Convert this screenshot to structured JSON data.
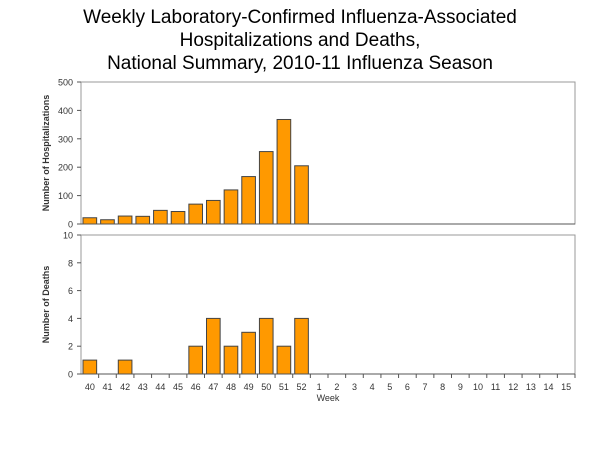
{
  "chart_data": [
    {
      "type": "bar",
      "title": "Weekly Laboratory-Confirmed Influenza-Associated Hospitalizations and Deaths, National Summary, 2010-11 Influenza Season",
      "title_lines": [
        "Weekly Laboratory-Confirmed Influenza-Associated",
        "Hospitalizations and Deaths,",
        "National Summary, 2010-11 Influenza Season"
      ],
      "ylabel": "Number of Hospitalizations",
      "ylim": [
        0,
        500
      ],
      "yticks": [
        0,
        100,
        200,
        300,
        400,
        500
      ],
      "categories": [
        "40",
        "41",
        "42",
        "43",
        "44",
        "45",
        "46",
        "47",
        "48",
        "49",
        "50",
        "51",
        "52",
        "1",
        "2",
        "3",
        "4",
        "5",
        "6",
        "7",
        "8",
        "9",
        "10",
        "11",
        "12",
        "13",
        "14",
        "15"
      ],
      "values": [
        22,
        15,
        28,
        27,
        48,
        44,
        70,
        83,
        120,
        167,
        255,
        368,
        205,
        null,
        null,
        null,
        null,
        null,
        null,
        null,
        null,
        null,
        null,
        null,
        null,
        null,
        null,
        null
      ],
      "color": "#FF9900"
    },
    {
      "type": "bar",
      "xlabel": "Week",
      "ylabel": "Number of Deaths",
      "ylim": [
        0,
        10
      ],
      "yticks": [
        0,
        2,
        4,
        6,
        8,
        10
      ],
      "categories": [
        "40",
        "41",
        "42",
        "43",
        "44",
        "45",
        "46",
        "47",
        "48",
        "49",
        "50",
        "51",
        "52",
        "1",
        "2",
        "3",
        "4",
        "5",
        "6",
        "7",
        "8",
        "9",
        "10",
        "11",
        "12",
        "13",
        "14",
        "15"
      ],
      "values": [
        1,
        0,
        1,
        0,
        0,
        0,
        2,
        4,
        2,
        3,
        4,
        2,
        4,
        null,
        null,
        null,
        null,
        null,
        null,
        null,
        null,
        null,
        null,
        null,
        null,
        null,
        null,
        null
      ],
      "color": "#FF9900"
    }
  ]
}
